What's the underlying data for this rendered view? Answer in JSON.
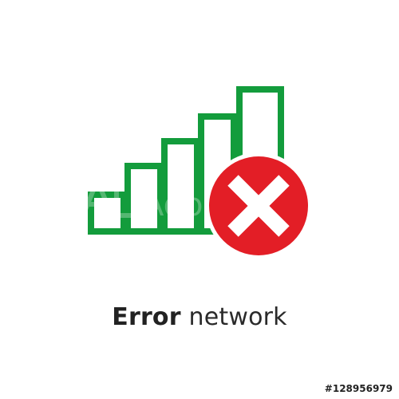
{
  "caption": {
    "bold_word": "Error",
    "light_word": "network"
  },
  "stock_id": "#128956979",
  "watermark": "Adobe Stock",
  "icons": {
    "signal": "signal-bars-icon",
    "error": "error-x-icon"
  },
  "colors": {
    "bars": "#139c3c",
    "error_circle": "#e31e26",
    "x_mark": "#ffffff",
    "text": "#222222"
  }
}
